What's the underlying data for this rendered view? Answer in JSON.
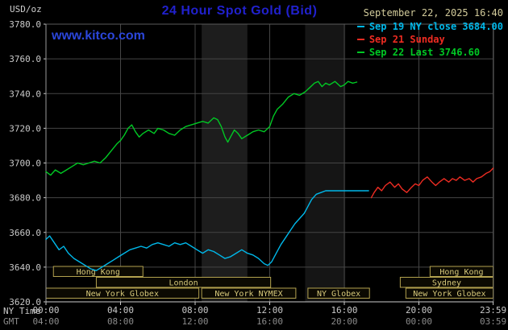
{
  "header": {
    "unit_label": "USD/oz",
    "title": "24 Hour Spot Gold (Bid)",
    "datetime": "September 22, 2025 16:40",
    "watermark": "www.kitco.com"
  },
  "legend": {
    "position": "top-right",
    "items": [
      {
        "label": "Sep 19 NY close 3684.00",
        "color": "#00b8ea"
      },
      {
        "label": "Sep 21 Sunday",
        "color": "#ee2c22"
      },
      {
        "label": "Sep 22 Last 3746.60",
        "color": "#00c824"
      }
    ]
  },
  "axes": {
    "ny_time_label": "NY Time",
    "gmt_label": "GMT"
  },
  "chart_data": {
    "type": "line",
    "title": "24 Hour Spot Gold (Bid)",
    "ylabel": "USD/oz",
    "grid": true,
    "x_range": [
      0,
      24
    ],
    "y_range": [
      3620,
      3780
    ],
    "close_value": 3684.0,
    "last_value": 3746.6,
    "colors": {
      "background": "#000000",
      "grid": "#454545",
      "border": "#5c5c5c",
      "axis": "#cdcdcd",
      "y_axis": "#9a9a9a",
      "tick_text": "#c9c9c9",
      "gmt_text": "#8b8b8b",
      "session_border": "#b3a24f",
      "session_text": "#d7c97b",
      "session_fill": "#0c0a02"
    },
    "y_ticks": [
      {
        "value": 3780,
        "label": "3780.0"
      },
      {
        "value": 3760,
        "label": "3760.0"
      },
      {
        "value": 3740,
        "label": "3740.0"
      },
      {
        "value": 3720,
        "label": "3720.0"
      },
      {
        "value": 3700,
        "label": "3700.0"
      },
      {
        "value": 3680,
        "label": "3680.0"
      },
      {
        "value": 3660,
        "label": "3660.0"
      },
      {
        "value": 3640,
        "label": "3640.0"
      },
      {
        "value": 3620,
        "label": "3620.0"
      }
    ],
    "x_ticks": [
      {
        "hour": 0,
        "ny": "00:00",
        "gmt": "04:00"
      },
      {
        "hour": 4,
        "ny": "04:00",
        "gmt": "08:00"
      },
      {
        "hour": 8,
        "ny": "08:00",
        "gmt": "12:00"
      },
      {
        "hour": 12,
        "ny": "12:00",
        "gmt": "16:00"
      },
      {
        "hour": 16,
        "ny": "16:00",
        "gmt": "20:00"
      },
      {
        "hour": 20,
        "ny": "20:00",
        "gmt": "00:00"
      },
      {
        "hour": 23.983,
        "ny": "23:59",
        "gmt": "03:59"
      }
    ],
    "bands": [
      {
        "start": 8.35,
        "end": 10.8,
        "color": "#1d1d1d"
      },
      {
        "start": 13.9,
        "end": 16.05,
        "color": "#151515"
      }
    ],
    "sessions": [
      {
        "row": 0,
        "start": 0.4,
        "end": 5.2,
        "label": "Hong Kong"
      },
      {
        "row": 0,
        "start": 20.6,
        "end": 23.98,
        "label": "Hong Kong"
      },
      {
        "row": 1,
        "start": 2.7,
        "end": 12.05,
        "label": "London"
      },
      {
        "row": 1,
        "start": 19.0,
        "end": 23.98,
        "label": "Sydney"
      },
      {
        "row": 2,
        "start": 0.0,
        "end": 8.2,
        "label": "New York Globex"
      },
      {
        "row": 2,
        "start": 8.35,
        "end": 13.4,
        "label": "New York NYMEX"
      },
      {
        "row": 2,
        "start": 14.05,
        "end": 17.35,
        "label": "NY Globex"
      },
      {
        "row": 2,
        "start": 19.3,
        "end": 23.98,
        "label": "New York Globex"
      }
    ],
    "series": [
      {
        "id": "sep19",
        "name": "Sep 19 NY close",
        "color": "#00b8ea",
        "value": 3684.0,
        "points": [
          [
            0,
            3656
          ],
          [
            0.2,
            3658
          ],
          [
            0.45,
            3654
          ],
          [
            0.7,
            3650
          ],
          [
            0.95,
            3652
          ],
          [
            1.2,
            3648
          ],
          [
            1.5,
            3645
          ],
          [
            1.8,
            3643
          ],
          [
            2.1,
            3641
          ],
          [
            2.4,
            3639
          ],
          [
            2.7,
            3638
          ],
          [
            3.0,
            3640
          ],
          [
            3.3,
            3642
          ],
          [
            3.6,
            3644
          ],
          [
            3.9,
            3646
          ],
          [
            4.2,
            3648
          ],
          [
            4.5,
            3650
          ],
          [
            4.8,
            3651
          ],
          [
            5.1,
            3652
          ],
          [
            5.4,
            3651
          ],
          [
            5.7,
            3653
          ],
          [
            6.0,
            3654
          ],
          [
            6.3,
            3653
          ],
          [
            6.6,
            3652
          ],
          [
            6.9,
            3654
          ],
          [
            7.2,
            3653
          ],
          [
            7.5,
            3654
          ],
          [
            7.8,
            3652
          ],
          [
            8.1,
            3650
          ],
          [
            8.4,
            3648
          ],
          [
            8.7,
            3650
          ],
          [
            9.0,
            3649
          ],
          [
            9.3,
            3647
          ],
          [
            9.6,
            3645
          ],
          [
            9.9,
            3646
          ],
          [
            10.2,
            3648
          ],
          [
            10.5,
            3650
          ],
          [
            10.8,
            3648
          ],
          [
            11.1,
            3647
          ],
          [
            11.4,
            3645
          ],
          [
            11.7,
            3642
          ],
          [
            11.9,
            3641
          ],
          [
            12.1,
            3643
          ],
          [
            12.35,
            3648
          ],
          [
            12.6,
            3653
          ],
          [
            12.85,
            3657
          ],
          [
            13.1,
            3661
          ],
          [
            13.35,
            3665
          ],
          [
            13.6,
            3668
          ],
          [
            13.85,
            3671
          ],
          [
            14.05,
            3675
          ],
          [
            14.25,
            3679
          ],
          [
            14.5,
            3682
          ],
          [
            14.75,
            3683
          ],
          [
            15.0,
            3684
          ],
          [
            17.3,
            3684
          ]
        ]
      },
      {
        "id": "sep21",
        "name": "Sep 21 Sunday",
        "color": "#ee2c22",
        "points": [
          [
            17.45,
            3680
          ],
          [
            17.6,
            3683
          ],
          [
            17.8,
            3686
          ],
          [
            18.0,
            3684
          ],
          [
            18.2,
            3687
          ],
          [
            18.45,
            3689
          ],
          [
            18.7,
            3686
          ],
          [
            18.9,
            3688
          ],
          [
            19.1,
            3685
          ],
          [
            19.35,
            3683
          ],
          [
            19.6,
            3686
          ],
          [
            19.8,
            3688
          ],
          [
            20.0,
            3687
          ],
          [
            20.2,
            3690
          ],
          [
            20.45,
            3692
          ],
          [
            20.7,
            3689
          ],
          [
            20.9,
            3687
          ],
          [
            21.1,
            3689
          ],
          [
            21.35,
            3691
          ],
          [
            21.6,
            3689
          ],
          [
            21.8,
            3691
          ],
          [
            22.0,
            3690
          ],
          [
            22.2,
            3692
          ],
          [
            22.45,
            3690
          ],
          [
            22.7,
            3691
          ],
          [
            22.9,
            3689
          ],
          [
            23.1,
            3691
          ],
          [
            23.35,
            3692
          ],
          [
            23.6,
            3694
          ],
          [
            23.8,
            3695
          ],
          [
            23.98,
            3697
          ]
        ]
      },
      {
        "id": "sep22",
        "name": "Sep 22 Last",
        "color": "#00c824",
        "value": 3746.6,
        "points": [
          [
            0,
            3695
          ],
          [
            0.25,
            3693
          ],
          [
            0.5,
            3696
          ],
          [
            0.8,
            3694
          ],
          [
            1.1,
            3696
          ],
          [
            1.4,
            3698
          ],
          [
            1.7,
            3700
          ],
          [
            2.0,
            3699
          ],
          [
            2.3,
            3700
          ],
          [
            2.6,
            3701
          ],
          [
            2.9,
            3700
          ],
          [
            3.2,
            3703
          ],
          [
            3.5,
            3707
          ],
          [
            3.8,
            3711
          ],
          [
            4.0,
            3713
          ],
          [
            4.2,
            3716
          ],
          [
            4.4,
            3720
          ],
          [
            4.6,
            3722
          ],
          [
            4.8,
            3718
          ],
          [
            5.0,
            3715
          ],
          [
            5.2,
            3717
          ],
          [
            5.5,
            3719
          ],
          [
            5.8,
            3717
          ],
          [
            6.0,
            3720
          ],
          [
            6.3,
            3719
          ],
          [
            6.6,
            3717
          ],
          [
            6.9,
            3716
          ],
          [
            7.2,
            3719
          ],
          [
            7.5,
            3721
          ],
          [
            7.8,
            3722
          ],
          [
            8.1,
            3723
          ],
          [
            8.4,
            3724
          ],
          [
            8.7,
            3723
          ],
          [
            9.0,
            3726
          ],
          [
            9.2,
            3725
          ],
          [
            9.4,
            3721
          ],
          [
            9.6,
            3715
          ],
          [
            9.75,
            3712
          ],
          [
            9.9,
            3715
          ],
          [
            10.1,
            3719
          ],
          [
            10.3,
            3717
          ],
          [
            10.5,
            3714
          ],
          [
            10.8,
            3716
          ],
          [
            11.1,
            3718
          ],
          [
            11.4,
            3719
          ],
          [
            11.7,
            3718
          ],
          [
            12.0,
            3721
          ],
          [
            12.2,
            3727
          ],
          [
            12.4,
            3731
          ],
          [
            12.7,
            3734
          ],
          [
            13.0,
            3738
          ],
          [
            13.3,
            3740
          ],
          [
            13.6,
            3739
          ],
          [
            13.9,
            3741
          ],
          [
            14.1,
            3743
          ],
          [
            14.4,
            3746
          ],
          [
            14.6,
            3747
          ],
          [
            14.8,
            3744
          ],
          [
            15.0,
            3746
          ],
          [
            15.2,
            3745
          ],
          [
            15.5,
            3747
          ],
          [
            15.8,
            3744
          ],
          [
            16.0,
            3745
          ],
          [
            16.2,
            3747
          ],
          [
            16.45,
            3746
          ],
          [
            16.67,
            3746.6
          ]
        ]
      }
    ]
  }
}
